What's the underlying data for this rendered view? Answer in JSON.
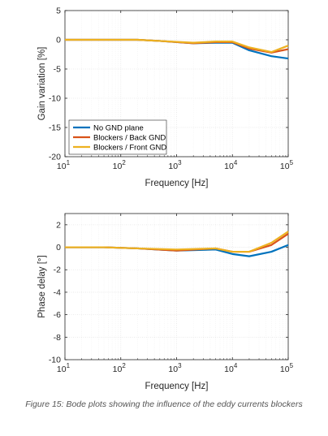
{
  "caption": "Figure 15: Bode plots showing the influence of the eddy currents blockers",
  "colors": {
    "no_gnd": "#0072BD",
    "back_gnd": "#D95319",
    "front_gnd": "#EDB120",
    "grid": "#e6e6e6",
    "axis": "#262626"
  },
  "chart_data": [
    {
      "type": "line",
      "xscale": "log",
      "xlim": [
        10,
        100000
      ],
      "ylim": [
        -20,
        5
      ],
      "yticks": [
        5,
        0,
        -5,
        -10,
        -15,
        -20
      ],
      "ytick_labels": [
        "5",
        "0",
        "-5",
        "-10",
        "-15",
        "-20"
      ],
      "xtick_bases": [
        "10",
        "10",
        "10",
        "10",
        "10"
      ],
      "xtick_exponents": [
        "1",
        "2",
        "3",
        "4",
        "5"
      ],
      "xlabel": "Frequency [Hz]",
      "ylabel": "Gain variation [%]",
      "grid": true,
      "legend": "bottom-left",
      "series": [
        {
          "name": "No GND plane",
          "color": "#0072BD",
          "x": [
            10,
            50,
            200,
            500,
            2000,
            5000,
            10000,
            20000,
            50000,
            100000
          ],
          "y": [
            0,
            0,
            0,
            -0.2,
            -0.6,
            -0.5,
            -0.5,
            -1.8,
            -2.8,
            -3.2
          ]
        },
        {
          "name": "Blockers / Back GND",
          "color": "#D95319",
          "x": [
            10,
            50,
            200,
            500,
            2000,
            5000,
            10000,
            20000,
            50000,
            100000
          ],
          "y": [
            0,
            0,
            0,
            -0.2,
            -0.6,
            -0.4,
            -0.4,
            -1.5,
            -2.2,
            -1.6
          ]
        },
        {
          "name": "Blockers / Front GND",
          "color": "#EDB120",
          "x": [
            10,
            50,
            200,
            500,
            2000,
            5000,
            10000,
            20000,
            50000,
            100000
          ],
          "y": [
            0,
            0,
            0,
            -0.2,
            -0.5,
            -0.3,
            -0.3,
            -1.3,
            -2.1,
            -1.0
          ]
        }
      ]
    },
    {
      "type": "line",
      "xscale": "log",
      "xlim": [
        10,
        100000
      ],
      "ylim": [
        -10,
        3
      ],
      "yticks": [
        2,
        0,
        -2,
        -4,
        -6,
        -8,
        -10
      ],
      "ytick_labels": [
        "2",
        "0",
        "-2",
        "-4",
        "-6",
        "-8",
        "-10"
      ],
      "xtick_bases": [
        "10",
        "10",
        "10",
        "10",
        "10"
      ],
      "xtick_exponents": [
        "1",
        "2",
        "3",
        "4",
        "5"
      ],
      "xlabel": "Frequency [Hz]",
      "ylabel": "Phase delay [°]",
      "grid": true,
      "series": [
        {
          "name": "No GND plane",
          "color": "#0072BD",
          "x": [
            10,
            50,
            200,
            1000,
            5000,
            10000,
            20000,
            50000,
            100000
          ],
          "y": [
            0,
            0,
            -0.1,
            -0.3,
            -0.2,
            -0.6,
            -0.8,
            -0.4,
            0.2
          ]
        },
        {
          "name": "Blockers / Back GND",
          "color": "#D95319",
          "x": [
            10,
            50,
            200,
            1000,
            5000,
            10000,
            20000,
            50000,
            100000
          ],
          "y": [
            0,
            0,
            -0.1,
            -0.3,
            -0.1,
            -0.4,
            -0.4,
            0.2,
            1.2
          ]
        },
        {
          "name": "Blockers / Front GND",
          "color": "#EDB120",
          "x": [
            10,
            50,
            200,
            1000,
            5000,
            10000,
            20000,
            50000,
            100000
          ],
          "y": [
            0,
            0,
            -0.1,
            -0.2,
            -0.1,
            -0.4,
            -0.4,
            0.4,
            1.4
          ]
        }
      ]
    }
  ]
}
